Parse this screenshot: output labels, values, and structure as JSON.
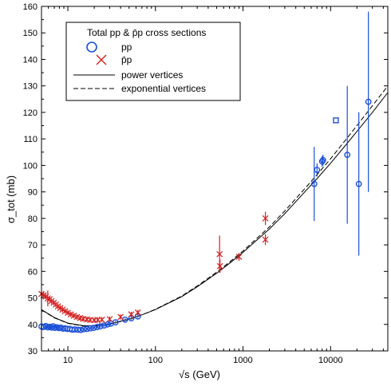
{
  "chart_data": {
    "type": "scatter",
    "title": "",
    "xlabel": "√s  (GeV)",
    "ylabel": "σ_tot (mb)",
    "xscale": "log",
    "xlim": [
      5,
      45000
    ],
    "ylim": [
      30,
      160
    ],
    "yticks": [
      30,
      40,
      50,
      60,
      70,
      80,
      90,
      100,
      110,
      120,
      130,
      140,
      150,
      160
    ],
    "xticks": [
      10,
      100,
      1000,
      10000
    ],
    "xtick_labels": [
      "10",
      "100",
      "1000",
      "10000"
    ],
    "legend": {
      "placement": "top-left",
      "title": "Total pp & p̄p cross sections",
      "entries": [
        "pp",
        "p̄p",
        "power vertices",
        "exponential  vertices"
      ]
    },
    "series": [
      {
        "name": "pp",
        "kind": "points",
        "color": "#1a4fd8",
        "marker": "circle",
        "points": [
          {
            "x": 5.0,
            "y": 39.2,
            "err": 0.6
          },
          {
            "x": 5.3,
            "y": 39.0,
            "err": 0.6
          },
          {
            "x": 5.6,
            "y": 39.4,
            "err": 0.6
          },
          {
            "x": 5.9,
            "y": 38.9,
            "err": 0.5
          },
          {
            "x": 6.2,
            "y": 39.1,
            "err": 0.5
          },
          {
            "x": 6.5,
            "y": 38.8,
            "err": 0.5
          },
          {
            "x": 6.8,
            "y": 39.3,
            "err": 0.5
          },
          {
            "x": 7.1,
            "y": 38.7,
            "err": 0.5
          },
          {
            "x": 7.5,
            "y": 38.9,
            "err": 0.5
          },
          {
            "x": 7.9,
            "y": 38.6,
            "err": 0.5
          },
          {
            "x": 8.3,
            "y": 38.8,
            "err": 0.5
          },
          {
            "x": 8.8,
            "y": 38.4,
            "err": 0.5
          },
          {
            "x": 9.3,
            "y": 38.5,
            "err": 0.5
          },
          {
            "x": 9.8,
            "y": 38.3,
            "err": 0.5
          },
          {
            "x": 10.5,
            "y": 38.3,
            "err": 0.5
          },
          {
            "x": 11.2,
            "y": 38.0,
            "err": 0.5
          },
          {
            "x": 12.0,
            "y": 38.1,
            "err": 0.5
          },
          {
            "x": 13.0,
            "y": 38.0,
            "err": 0.5
          },
          {
            "x": 14.0,
            "y": 37.9,
            "err": 0.5
          },
          {
            "x": 15.2,
            "y": 38.2,
            "err": 0.5
          },
          {
            "x": 16.5,
            "y": 38.3,
            "err": 0.5
          },
          {
            "x": 18.0,
            "y": 38.5,
            "err": 0.5
          },
          {
            "x": 19.7,
            "y": 38.7,
            "err": 0.5
          },
          {
            "x": 21.5,
            "y": 39.0,
            "err": 0.5
          },
          {
            "x": 23.5,
            "y": 39.3,
            "err": 0.5
          },
          {
            "x": 26.0,
            "y": 39.6,
            "err": 0.5
          },
          {
            "x": 28.5,
            "y": 40.0,
            "err": 0.5
          },
          {
            "x": 31.0,
            "y": 40.3,
            "err": 0.5
          },
          {
            "x": 35.0,
            "y": 40.8,
            "err": 0.5
          },
          {
            "x": 45.0,
            "y": 41.8,
            "err": 0.5
          },
          {
            "x": 53.0,
            "y": 42.3,
            "err": 0.5
          },
          {
            "x": 63.0,
            "y": 43.0,
            "err": 0.5
          },
          {
            "x": 7000,
            "y": 98.3,
            "err": 2.5
          },
          {
            "x": 8000,
            "y": 101.5,
            "err": 2.0
          },
          {
            "x": 8200,
            "y": 102.0,
            "err": 2.0
          },
          {
            "x": 6500,
            "y": 93.0,
            "err": 14.0
          },
          {
            "x": 15500,
            "y": 104.0,
            "err": 26.0
          },
          {
            "x": 21000,
            "y": 93.0,
            "err": 27.0
          },
          {
            "x": 27000,
            "y": 124.0,
            "err": 34.0
          }
        ]
      },
      {
        "name": "pp square",
        "kind": "points",
        "color": "#1a4fd8",
        "marker": "square",
        "points": [
          {
            "x": 11500,
            "y": 117.0,
            "err": 0
          }
        ]
      },
      {
        "name": "p̄p",
        "kind": "points",
        "color": "#d42020",
        "marker": "cross",
        "points": [
          {
            "x": 5.0,
            "y": 51.5,
            "err": 1.0
          },
          {
            "x": 5.3,
            "y": 51.0,
            "err": 1.2
          },
          {
            "x": 5.6,
            "y": 50.5,
            "err": 1.0
          },
          {
            "x": 5.9,
            "y": 49.8,
            "err": 3.0
          },
          {
            "x": 6.2,
            "y": 49.5,
            "err": 1.0
          },
          {
            "x": 6.5,
            "y": 48.8,
            "err": 1.0
          },
          {
            "x": 6.9,
            "y": 48.2,
            "err": 1.0
          },
          {
            "x": 7.3,
            "y": 47.5,
            "err": 1.0
          },
          {
            "x": 7.7,
            "y": 46.8,
            "err": 1.0
          },
          {
            "x": 8.2,
            "y": 46.2,
            "err": 1.0
          },
          {
            "x": 8.7,
            "y": 45.6,
            "err": 1.0
          },
          {
            "x": 9.3,
            "y": 45.0,
            "err": 1.0
          },
          {
            "x": 10.0,
            "y": 44.4,
            "err": 1.0
          },
          {
            "x": 10.8,
            "y": 43.8,
            "err": 1.0
          },
          {
            "x": 11.7,
            "y": 43.3,
            "err": 1.0
          },
          {
            "x": 12.7,
            "y": 42.8,
            "err": 1.0
          },
          {
            "x": 13.8,
            "y": 42.4,
            "err": 1.0
          },
          {
            "x": 15.0,
            "y": 42.1,
            "err": 1.0
          },
          {
            "x": 16.5,
            "y": 41.9,
            "err": 1.0
          },
          {
            "x": 18.0,
            "y": 41.7,
            "err": 1.0
          },
          {
            "x": 20.0,
            "y": 41.6,
            "err": 1.0
          },
          {
            "x": 22.0,
            "y": 41.7,
            "err": 1.0
          },
          {
            "x": 24.5,
            "y": 41.8,
            "err": 1.0
          },
          {
            "x": 30.0,
            "y": 42.0,
            "err": 1.0
          },
          {
            "x": 40.0,
            "y": 42.8,
            "err": 1.0
          },
          {
            "x": 53.0,
            "y": 43.8,
            "err": 1.0
          },
          {
            "x": 63.0,
            "y": 44.5,
            "err": 1.0
          },
          {
            "x": 540,
            "y": 66.5,
            "err": 7.0
          },
          {
            "x": 546,
            "y": 62.0,
            "err": 2.5
          },
          {
            "x": 900,
            "y": 65.5,
            "err": 1.5
          },
          {
            "x": 1800,
            "y": 80.0,
            "err": 2.5
          },
          {
            "x": 1800,
            "y": 72.0,
            "err": 2.0
          }
        ]
      },
      {
        "name": "power vertices",
        "kind": "line",
        "dash": "",
        "points": [
          {
            "x": 5,
            "y": 45.6
          },
          {
            "x": 7,
            "y": 42.6
          },
          {
            "x": 10,
            "y": 40.5
          },
          {
            "x": 15,
            "y": 39.5
          },
          {
            "x": 20,
            "y": 39.5
          },
          {
            "x": 30,
            "y": 40.2
          },
          {
            "x": 50,
            "y": 42.0
          },
          {
            "x": 70,
            "y": 43.6
          },
          {
            "x": 100,
            "y": 45.6
          },
          {
            "x": 200,
            "y": 50.5
          },
          {
            "x": 300,
            "y": 54.2
          },
          {
            "x": 500,
            "y": 59.3
          },
          {
            "x": 700,
            "y": 63.0
          },
          {
            "x": 1000,
            "y": 67.2
          },
          {
            "x": 2000,
            "y": 76.0
          },
          {
            "x": 3000,
            "y": 81.8
          },
          {
            "x": 5000,
            "y": 89.8
          },
          {
            "x": 7000,
            "y": 95.0
          },
          {
            "x": 10000,
            "y": 100.8
          },
          {
            "x": 15000,
            "y": 107.8
          },
          {
            "x": 20000,
            "y": 112.8
          },
          {
            "x": 30000,
            "y": 120.0
          },
          {
            "x": 45000,
            "y": 127.5
          }
        ]
      },
      {
        "name": "exponential  vertices",
        "kind": "line",
        "dash": "6,3",
        "points": [
          {
            "x": 5,
            "y": 45.5
          },
          {
            "x": 7,
            "y": 42.5
          },
          {
            "x": 10,
            "y": 40.4
          },
          {
            "x": 15,
            "y": 39.4
          },
          {
            "x": 20,
            "y": 39.4
          },
          {
            "x": 30,
            "y": 40.1
          },
          {
            "x": 50,
            "y": 41.9
          },
          {
            "x": 70,
            "y": 43.6
          },
          {
            "x": 100,
            "y": 45.7
          },
          {
            "x": 200,
            "y": 50.7
          },
          {
            "x": 300,
            "y": 54.5
          },
          {
            "x": 500,
            "y": 59.7
          },
          {
            "x": 700,
            "y": 63.5
          },
          {
            "x": 1000,
            "y": 67.7
          },
          {
            "x": 2000,
            "y": 76.8
          },
          {
            "x": 3000,
            "y": 82.8
          },
          {
            "x": 5000,
            "y": 91.0
          },
          {
            "x": 7000,
            "y": 96.5
          },
          {
            "x": 10000,
            "y": 102.5
          },
          {
            "x": 15000,
            "y": 109.8
          },
          {
            "x": 20000,
            "y": 115.0
          },
          {
            "x": 30000,
            "y": 122.5
          },
          {
            "x": 45000,
            "y": 130.0
          }
        ]
      }
    ]
  }
}
